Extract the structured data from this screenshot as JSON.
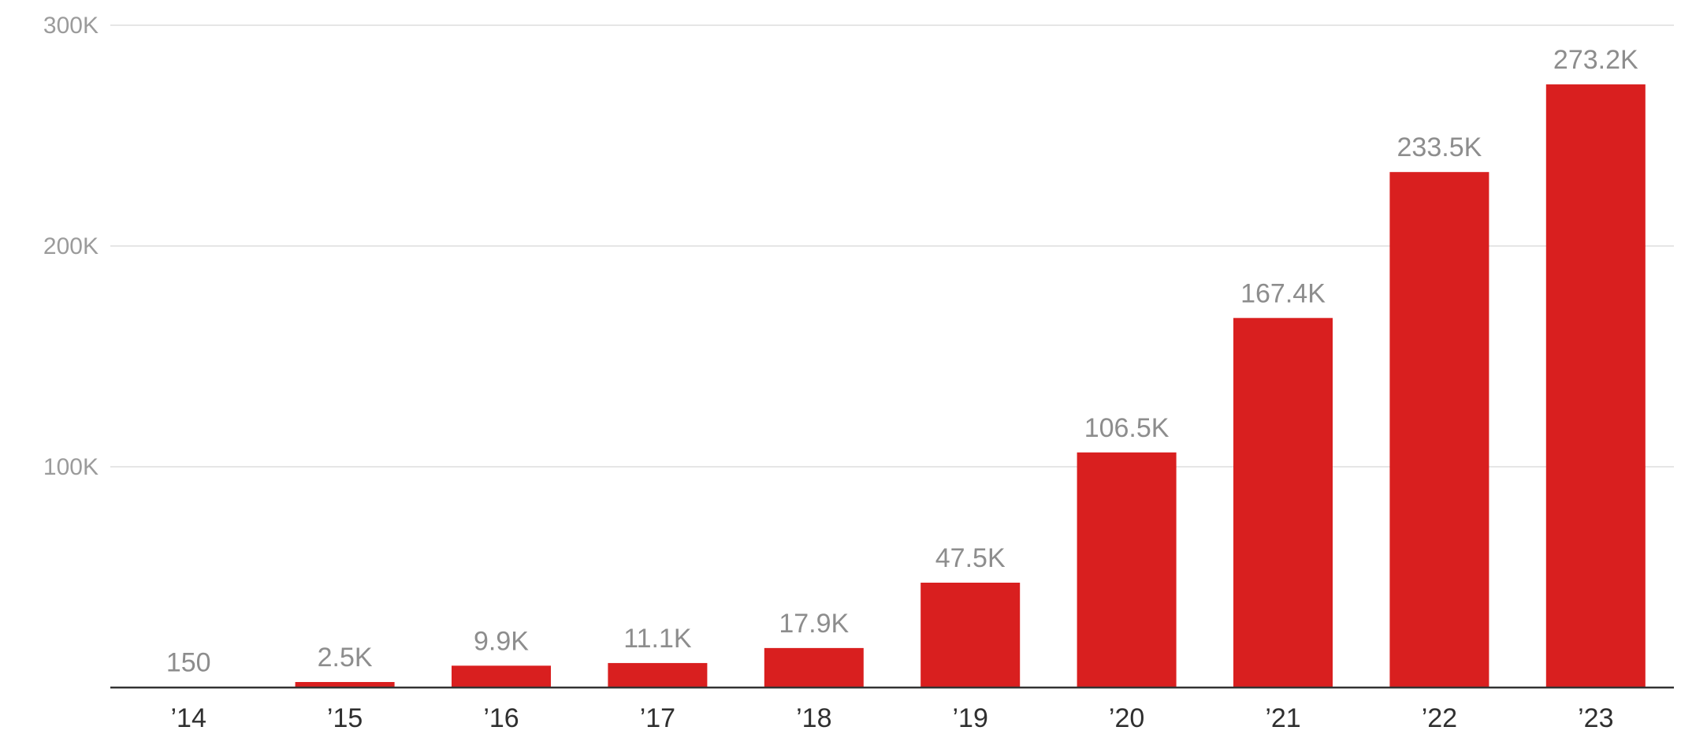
{
  "chart_data": {
    "type": "bar",
    "title": "",
    "xlabel": "",
    "ylabel": "",
    "categories": [
      "’14",
      "’15",
      "’16",
      "’17",
      "’18",
      "’19",
      "’20",
      "’21",
      "’22",
      "’23"
    ],
    "values": [
      150,
      2500,
      9900,
      11100,
      17900,
      47500,
      106500,
      167400,
      233500,
      273200
    ],
    "data_labels": [
      "150",
      "2.5K",
      "9.9K",
      "11.1K",
      "17.9K",
      "47.5K",
      "106.5K",
      "167.4K",
      "233.5K",
      "273.2K"
    ],
    "ylim": [
      0,
      300000
    ],
    "yticks": [
      100000,
      200000,
      300000
    ],
    "ytick_labels": [
      "100K",
      "200K",
      "300K"
    ],
    "grid": true,
    "legend": "none",
    "bar_color": "#d91f1f"
  }
}
